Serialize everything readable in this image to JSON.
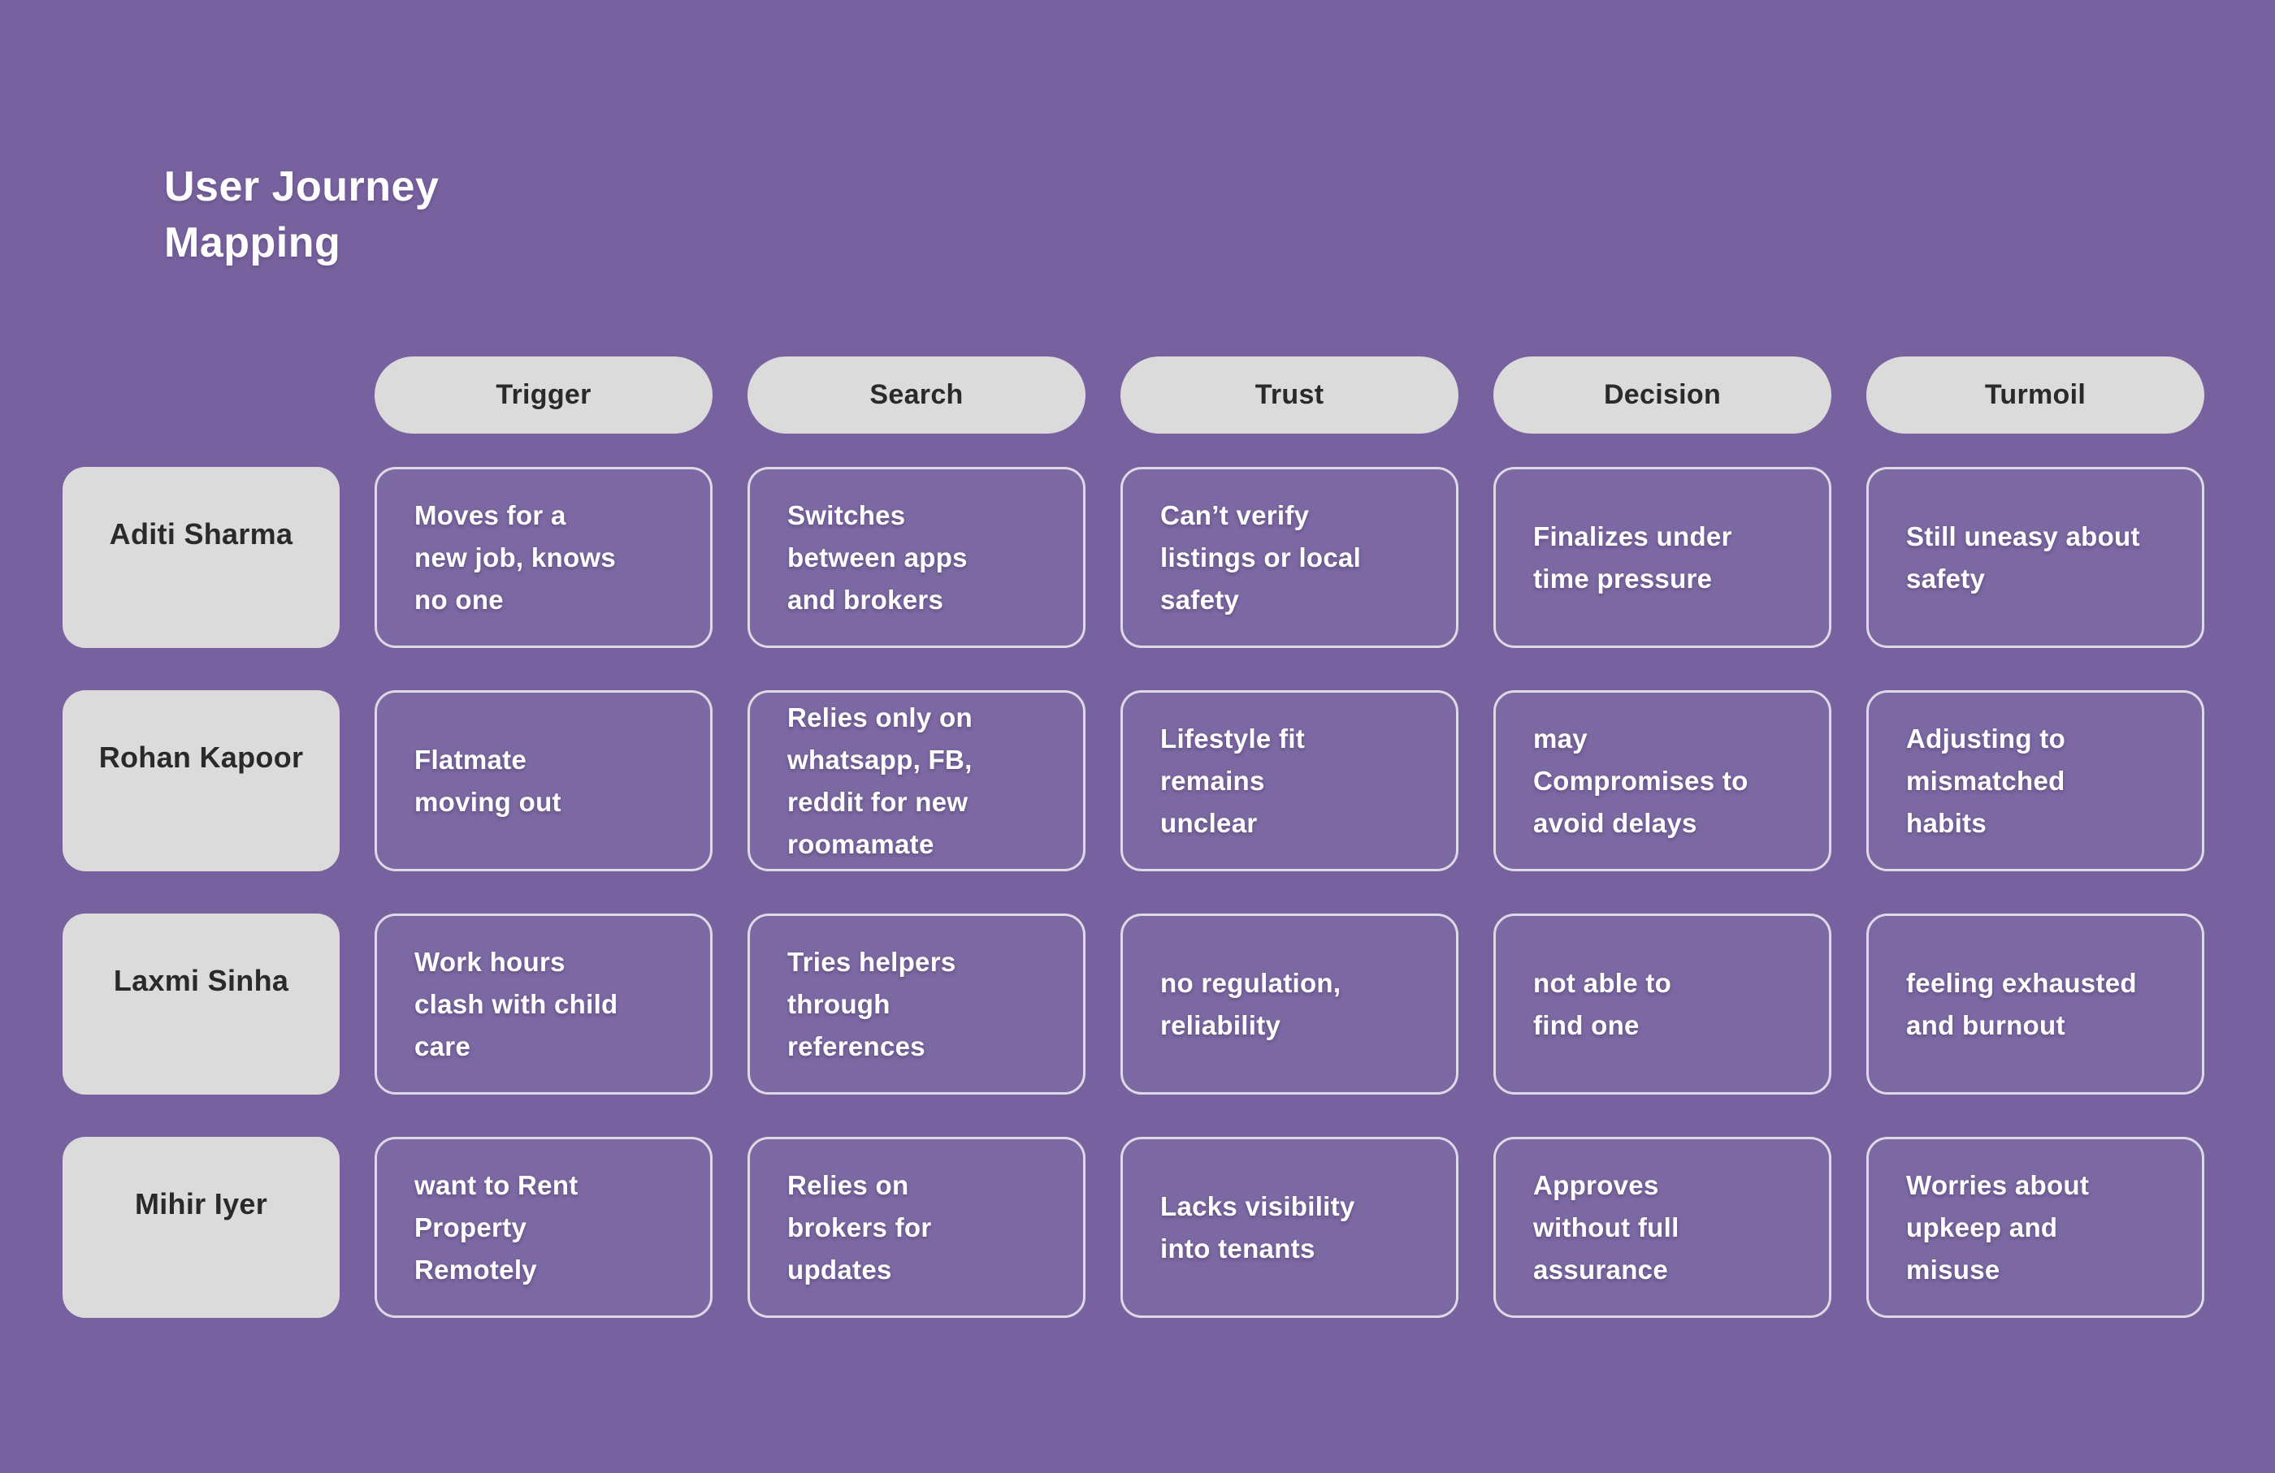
{
  "journey": {
    "title": "User Journey\nMapping",
    "stage_headers": [
      "Trigger",
      "Search",
      "Trust",
      "Decision",
      "Turmoil"
    ],
    "rows": [
      {
        "persona": "Aditi Sharma",
        "cells": [
          "Moves for a\nnew job, knows\nno one",
          "Switches\nbetween apps\nand brokers",
          "Can’t verify\nlistings or local\nsafety",
          "Finalizes under\ntime pressure",
          "Still uneasy about\nsafety"
        ]
      },
      {
        "persona": "Rohan Kapoor",
        "cells": [
          "Flatmate\nmoving out",
          "Relies only on\nwhatsapp, FB,\nreddit for new\nroomamate",
          "Lifestyle fit\nremains\nunclear",
          "may\nCompromises to\navoid delays",
          "Adjusting to\nmismatched\nhabits"
        ]
      },
      {
        "persona": "Laxmi Sinha",
        "cells": [
          "Work hours\nclash with child\ncare",
          "Tries helpers\nthrough\nreferences",
          "no regulation,\nreliability",
          "not able to\nfind one",
          "feeling exhausted\nand burnout"
        ]
      },
      {
        "persona": "Mihir Iyer",
        "cells": [
          "want to Rent\nProperty\nRemotely",
          "Relies on\nbrokers for\nupdates",
          "Lacks visibility\ninto tenants",
          "Approves\nwithout full\nassurance",
          "Worries about\nupkeep and\nmisuse"
        ]
      }
    ]
  },
  "colors": {
    "background": "#77629F",
    "card_gray": "#DBDBDB",
    "cell_border": "#DED9E6",
    "cell_text": "#FFFFFF",
    "dark_text": "#2A2A2A",
    "title_text": "#FFFFFF"
  }
}
